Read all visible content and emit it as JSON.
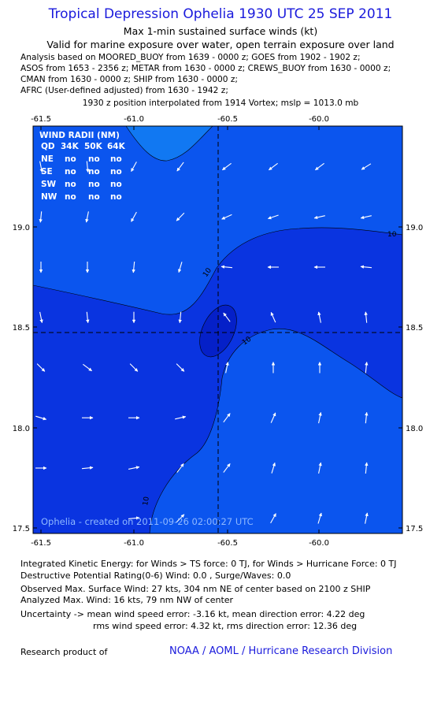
{
  "header": {
    "title": "Tropical Depression Ophelia 1930 UTC 25 SEP 2011",
    "subtitle1": "Max 1-min sustained surface winds (kt)",
    "subtitle2": "Valid for marine exposure over water, open terrain exposure over land"
  },
  "analysis": [
    "Analysis based on MOORED_BUOY from 1639 - 0000 z; GOES from 1902 - 1902 z;",
    "ASOS from 1653 - 2356 z; METAR from 1630 - 0000 z; CREWS_BUOY from 1630 - 0000 z;",
    "CMAN from 1630 - 0000 z; SHIP from 1630 - 0000 z;",
    "AFRC (User-defined adjusted) from 1630 - 1942 z;"
  ],
  "position_note": "1930 z position interpolated from 1914 Vortex; mslp = 1013.0 mb",
  "colors": {
    "title": "#1a1adc",
    "region_dark": "#0a34e0",
    "region_mid": "#0b55ee",
    "region_light": "#1178f2",
    "region_lightest": "#1a98f6",
    "center_core": "#0520c8",
    "arrow": "#ffffff",
    "text_blue": "#1a1adc"
  },
  "chart_data": {
    "type": "wind_field_contour",
    "x_ticks": [
      "-61.5",
      "-61.0",
      "-60.5",
      "-60.0"
    ],
    "y_ticks": [
      "19.0",
      "18.5",
      "18.0",
      "17.5"
    ],
    "xlim": [
      -61.5,
      -59.55
    ],
    "ylim": [
      17.48,
      19.55
    ],
    "contour_label": "10",
    "center": {
      "lon": -60.53,
      "lat": 18.47
    },
    "wind_radii": {
      "title": "WIND RADII (NM)",
      "header": [
        "QD",
        "34K",
        "50K",
        "64K"
      ],
      "rows": [
        [
          "NE",
          "no",
          "no",
          "no"
        ],
        [
          "SE",
          "no",
          "no",
          "no"
        ],
        [
          "SW",
          "no",
          "no",
          "no"
        ],
        [
          "NW",
          "no",
          "no",
          "no"
        ]
      ]
    },
    "created_label": "Ophelia - created on 2011-09-26 02:00:27 UTC",
    "arrows": [
      {
        "lon": -61.5,
        "lat": 19.3,
        "dx": 0.2,
        "dy": -1
      },
      {
        "lon": -61.25,
        "lat": 19.3,
        "dx": 0.1,
        "dy": -1
      },
      {
        "lon": -61.0,
        "lat": 19.3,
        "dx": -0.5,
        "dy": -0.9
      },
      {
        "lon": -60.75,
        "lat": 19.3,
        "dx": -0.6,
        "dy": -0.8
      },
      {
        "lon": -60.5,
        "lat": 19.3,
        "dx": -0.8,
        "dy": -0.6
      },
      {
        "lon": -60.25,
        "lat": 19.3,
        "dx": -0.8,
        "dy": -0.6
      },
      {
        "lon": -60.0,
        "lat": 19.3,
        "dx": -0.8,
        "dy": -0.6
      },
      {
        "lon": -59.75,
        "lat": 19.3,
        "dx": -0.8,
        "dy": -0.5
      },
      {
        "lon": -61.5,
        "lat": 19.05,
        "dx": -0.1,
        "dy": -1
      },
      {
        "lon": -61.25,
        "lat": 19.05,
        "dx": -0.2,
        "dy": -1
      },
      {
        "lon": -61.0,
        "lat": 19.05,
        "dx": -0.5,
        "dy": -0.9
      },
      {
        "lon": -60.75,
        "lat": 19.05,
        "dx": -0.7,
        "dy": -0.7
      },
      {
        "lon": -60.5,
        "lat": 19.05,
        "dx": -0.9,
        "dy": -0.4
      },
      {
        "lon": -60.25,
        "lat": 19.05,
        "dx": -0.9,
        "dy": -0.3
      },
      {
        "lon": -60.0,
        "lat": 19.05,
        "dx": -0.9,
        "dy": -0.2
      },
      {
        "lon": -59.75,
        "lat": 19.05,
        "dx": -0.9,
        "dy": -0.2
      },
      {
        "lon": -61.5,
        "lat": 18.8,
        "dx": 0.0,
        "dy": -1
      },
      {
        "lon": -61.25,
        "lat": 18.8,
        "dx": 0.0,
        "dy": -1
      },
      {
        "lon": -61.0,
        "lat": 18.8,
        "dx": -0.1,
        "dy": -1
      },
      {
        "lon": -60.75,
        "lat": 18.8,
        "dx": -0.3,
        "dy": -1
      },
      {
        "lon": -60.5,
        "lat": 18.8,
        "dx": -1,
        "dy": 0.1
      },
      {
        "lon": -60.25,
        "lat": 18.8,
        "dx": -1,
        "dy": 0
      },
      {
        "lon": -60.0,
        "lat": 18.8,
        "dx": -1,
        "dy": 0
      },
      {
        "lon": -59.75,
        "lat": 18.8,
        "dx": -1,
        "dy": 0.1
      },
      {
        "lon": -61.5,
        "lat": 18.55,
        "dx": 0.2,
        "dy": -1
      },
      {
        "lon": -61.25,
        "lat": 18.55,
        "dx": 0.1,
        "dy": -1
      },
      {
        "lon": -61.0,
        "lat": 18.55,
        "dx": 0,
        "dy": -1
      },
      {
        "lon": -60.75,
        "lat": 18.55,
        "dx": -0.1,
        "dy": -1
      },
      {
        "lon": -60.5,
        "lat": 18.55,
        "dx": -0.6,
        "dy": 0.8
      },
      {
        "lon": -60.25,
        "lat": 18.55,
        "dx": -0.4,
        "dy": 0.9
      },
      {
        "lon": -60.0,
        "lat": 18.55,
        "dx": -0.2,
        "dy": 1
      },
      {
        "lon": -59.75,
        "lat": 18.55,
        "dx": -0.1,
        "dy": 1
      },
      {
        "lon": -61.5,
        "lat": 18.3,
        "dx": 0.7,
        "dy": -0.7
      },
      {
        "lon": -61.25,
        "lat": 18.3,
        "dx": 0.8,
        "dy": -0.6
      },
      {
        "lon": -61.0,
        "lat": 18.3,
        "dx": 0.7,
        "dy": -0.7
      },
      {
        "lon": -60.75,
        "lat": 18.3,
        "dx": 0.7,
        "dy": -0.7
      },
      {
        "lon": -60.5,
        "lat": 18.3,
        "dx": 0.2,
        "dy": 1
      },
      {
        "lon": -60.25,
        "lat": 18.3,
        "dx": 0.0,
        "dy": 1
      },
      {
        "lon": -60.0,
        "lat": 18.3,
        "dx": 0.0,
        "dy": 1
      },
      {
        "lon": -59.75,
        "lat": 18.3,
        "dx": 0.1,
        "dy": 1
      },
      {
        "lon": -61.5,
        "lat": 18.05,
        "dx": 1,
        "dy": -0.3
      },
      {
        "lon": -61.25,
        "lat": 18.05,
        "dx": 1,
        "dy": 0
      },
      {
        "lon": -61.0,
        "lat": 18.05,
        "dx": 1,
        "dy": 0
      },
      {
        "lon": -60.75,
        "lat": 18.05,
        "dx": 0.9,
        "dy": 0.2
      },
      {
        "lon": -60.5,
        "lat": 18.05,
        "dx": 0.6,
        "dy": 0.8
      },
      {
        "lon": -60.25,
        "lat": 18.05,
        "dx": 0.4,
        "dy": 0.9
      },
      {
        "lon": -60.0,
        "lat": 18.05,
        "dx": 0.2,
        "dy": 1
      },
      {
        "lon": -59.75,
        "lat": 18.05,
        "dx": 0.1,
        "dy": 1
      },
      {
        "lon": -61.5,
        "lat": 17.8,
        "dx": 1,
        "dy": 0
      },
      {
        "lon": -61.25,
        "lat": 17.8,
        "dx": 1,
        "dy": 0.1
      },
      {
        "lon": -61.0,
        "lat": 17.8,
        "dx": 1,
        "dy": 0.2
      },
      {
        "lon": -60.75,
        "lat": 17.8,
        "dx": 0.6,
        "dy": 0.8
      },
      {
        "lon": -60.5,
        "lat": 17.8,
        "dx": 0.6,
        "dy": 0.8
      },
      {
        "lon": -60.25,
        "lat": 17.8,
        "dx": 0.3,
        "dy": 1
      },
      {
        "lon": -60.0,
        "lat": 17.8,
        "dx": 0.2,
        "dy": 1
      },
      {
        "lon": -59.75,
        "lat": 17.8,
        "dx": 0.1,
        "dy": 1
      },
      {
        "lon": -61.0,
        "lat": 17.55,
        "dx": 1,
        "dy": 0.1
      },
      {
        "lon": -60.75,
        "lat": 17.55,
        "dx": 0.7,
        "dy": 0.7
      },
      {
        "lon": -60.25,
        "lat": 17.55,
        "dx": 0.5,
        "dy": 0.9
      },
      {
        "lon": -60.0,
        "lat": 17.55,
        "dx": 0.3,
        "dy": 1
      },
      {
        "lon": -59.75,
        "lat": 17.55,
        "dx": 0.2,
        "dy": 1
      }
    ]
  },
  "footer": {
    "ike": "Integrated Kinetic Energy:  for Winds > TS force: 0 TJ,  for Winds > Hurricane Force: 0 TJ",
    "dpr": "Destructive Potential Rating(0-6)   Wind: 0.0 , Surge/Waves: 0.0",
    "observed": "Observed Max. Surface Wind: 27 kts, 304 nm NE of center based on 2100 z SHIP",
    "analyzed": "Analyzed Max. Wind: 16 kts, 79 nm NW of center",
    "uncertainty1": "Uncertainty -> mean wind speed error:  -3.16 kt,   mean direction error: 4.22 deg",
    "uncertainty2": "rms wind speed error: 4.32 kt,   rms direction error: 12.36 deg",
    "research": "Research product of",
    "org": "NOAA / AOML / Hurricane Research Division"
  }
}
